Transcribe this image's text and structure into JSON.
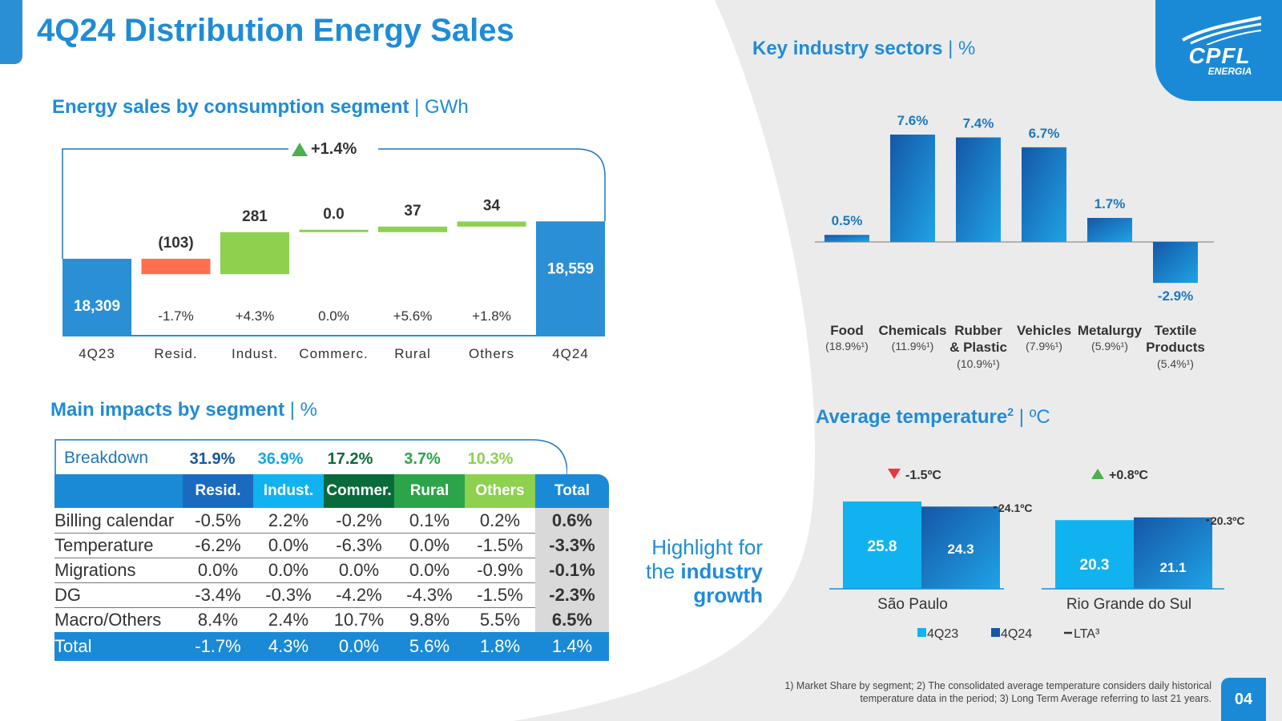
{
  "title": "4Q24 Distribution Energy Sales",
  "logo": {
    "name": "CPFL",
    "sub": "ENERGIA"
  },
  "colors": {
    "accent": "#1f8cd6",
    "blue": "#2b8fd6",
    "dark_blue": "#1557a6",
    "orange": "#ff6f4e",
    "green": "#8dd14f",
    "cyan": "#10b3ef",
    "dark_green": "#0a6b3a",
    "mid_green": "#2ca44a"
  },
  "segment_section": {
    "title": "Energy sales by consumption segment",
    "unit": "| GWh"
  },
  "sectors_section": {
    "title": "Key industry sectors",
    "unit": "| %"
  },
  "impacts_section": {
    "title": "Main impacts by segment",
    "unit": "| %"
  },
  "temp_section": {
    "title": "Average temperature",
    "sup": "2",
    "unit": "| ºC"
  },
  "highlight": {
    "line1": "Highlight for",
    "line2a": "the ",
    "line2b": "industry",
    "line3": "growth"
  },
  "footnote": {
    "line1": "1) Market Share by segment; 2) The consolidated average temperature considers daily historical",
    "line2": "temperature data in the period; 3) Long Term Average referring to last 21 years."
  },
  "page_number": "04",
  "chart_data": [
    {
      "type": "bar",
      "subtype": "waterfall",
      "title": "Energy sales by consumption segment | GWh",
      "categories": [
        "4Q23",
        "Resid.",
        "Indust.",
        "Commerc.",
        "Rural",
        "Others",
        "4Q24"
      ],
      "values": [
        18309,
        -103,
        281,
        0.0,
        37,
        34,
        18559
      ],
      "value_labels": [
        "18,309",
        "(103)",
        "281",
        "0.0",
        "37",
        "34",
        "18,559"
      ],
      "pct_changes": [
        "",
        "-1.7%",
        "+4.3%",
        "0.0%",
        "+5.6%",
        "+1.8%",
        ""
      ],
      "total_change": "+1.4%"
    },
    {
      "type": "bar",
      "title": "Key industry sectors | %",
      "categories": [
        "Food",
        "Chemicals",
        "Rubber & Plastic",
        "Vehicles",
        "Metalurgy",
        "Textile Products"
      ],
      "values": [
        0.5,
        7.6,
        7.4,
        6.7,
        1.7,
        -2.9
      ],
      "value_labels": [
        "0.5%",
        "7.6%",
        "7.4%",
        "6.7%",
        "1.7%",
        "-2.9%"
      ],
      "label_lines": [
        [
          "Food"
        ],
        [
          "Chemicals"
        ],
        [
          "Rubber",
          "& Plastic"
        ],
        [
          "Vehicles"
        ],
        [
          "Metalurgy"
        ],
        [
          "Textile",
          "Products"
        ]
      ],
      "market_share": [
        "(18.9%¹)",
        "(11.9%¹)",
        "(10.9%¹)",
        "(7.9%¹)",
        "(5.9%¹)",
        "(5.4%¹)"
      ]
    },
    {
      "type": "bar",
      "title": "Average temperature | ºC",
      "categories": [
        "São Paulo",
        "Rio Grande do Sul"
      ],
      "series": [
        {
          "name": "4Q23",
          "values": [
            25.8,
            20.3
          ]
        },
        {
          "name": "4Q24",
          "values": [
            24.3,
            21.1
          ]
        },
        {
          "name": "LTA³",
          "values": [
            24.1,
            20.3
          ]
        }
      ],
      "value_labels": {
        "4Q23": [
          "25.8",
          "20.3"
        ],
        "4Q24": [
          "24.3",
          "21.1"
        ],
        "LTA": [
          "24.1ºC",
          "20.3ºC"
        ]
      },
      "changes": [
        {
          "text": "-1.5ºC",
          "dir": "down"
        },
        {
          "text": "+0.8ºC",
          "dir": "up"
        }
      ],
      "legend": [
        "4Q23",
        "4Q24",
        "LTA³"
      ]
    },
    {
      "type": "table",
      "title": "Main impacts by segment | %",
      "breakdown_label": "Breakdown",
      "breakdown": [
        "31.9%",
        "36.9%",
        "17.2%",
        "3.7%",
        "10.3%"
      ],
      "columns": [
        "Resid.",
        "Indust.",
        "Commer.",
        "Rural",
        "Others",
        "Total"
      ],
      "rows": [
        {
          "label": "Billing calendar",
          "values": [
            "-0.5%",
            "2.2%",
            "-0.2%",
            "0.1%",
            "0.2%",
            "0.6%"
          ]
        },
        {
          "label": "Temperature",
          "values": [
            "-6.2%",
            "0.0%",
            "-6.3%",
            "0.0%",
            "-1.5%",
            "-3.3%"
          ]
        },
        {
          "label": "Migrations",
          "values": [
            "0.0%",
            "0.0%",
            "0.0%",
            "0.0%",
            "-0.9%",
            "-0.1%"
          ]
        },
        {
          "label": "DG",
          "values": [
            "-3.4%",
            "-0.3%",
            "-4.2%",
            "-4.3%",
            "-1.5%",
            "-2.3%"
          ]
        },
        {
          "label": "Macro/Others",
          "values": [
            "8.4%",
            "2.4%",
            "10.7%",
            "9.8%",
            "5.5%",
            "6.5%"
          ]
        }
      ],
      "total_row": {
        "label": "Total",
        "values": [
          "-1.7%",
          "4.3%",
          "0.0%",
          "5.6%",
          "1.8%",
          "1.4%"
        ]
      }
    }
  ]
}
